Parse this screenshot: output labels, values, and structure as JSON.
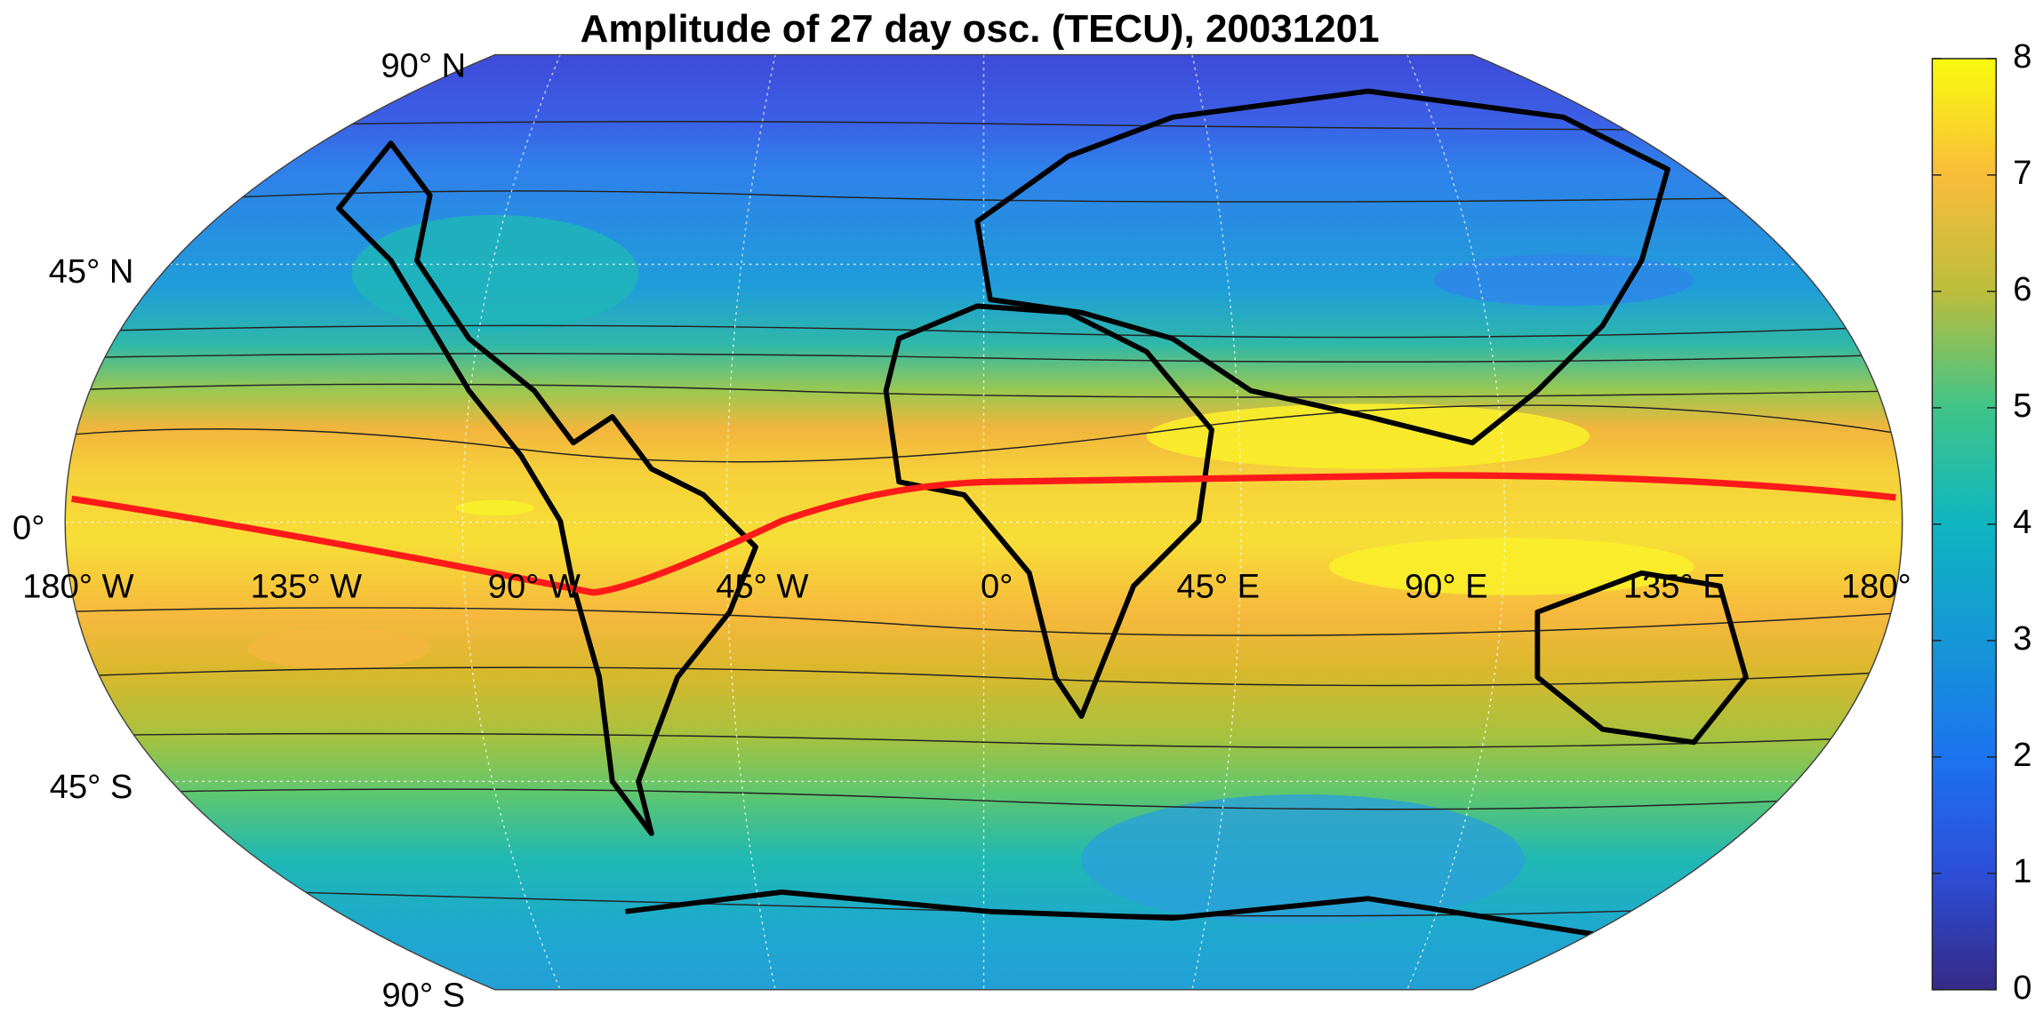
{
  "title": "Amplitude of 27 day osc. (TECU), 20031201",
  "lat_labels": [
    "90° N",
    "45° N",
    "0°",
    "45° S",
    "90° S"
  ],
  "lon_labels": [
    "180° W",
    "135° W",
    "90° W",
    "45° W",
    "0°",
    "45° E",
    "90° E",
    "135° E",
    "180°"
  ],
  "colorbar": {
    "lim": [
      0,
      8
    ],
    "ticks": [
      0,
      1,
      2,
      3,
      4,
      5,
      6,
      7,
      8
    ]
  }
}
